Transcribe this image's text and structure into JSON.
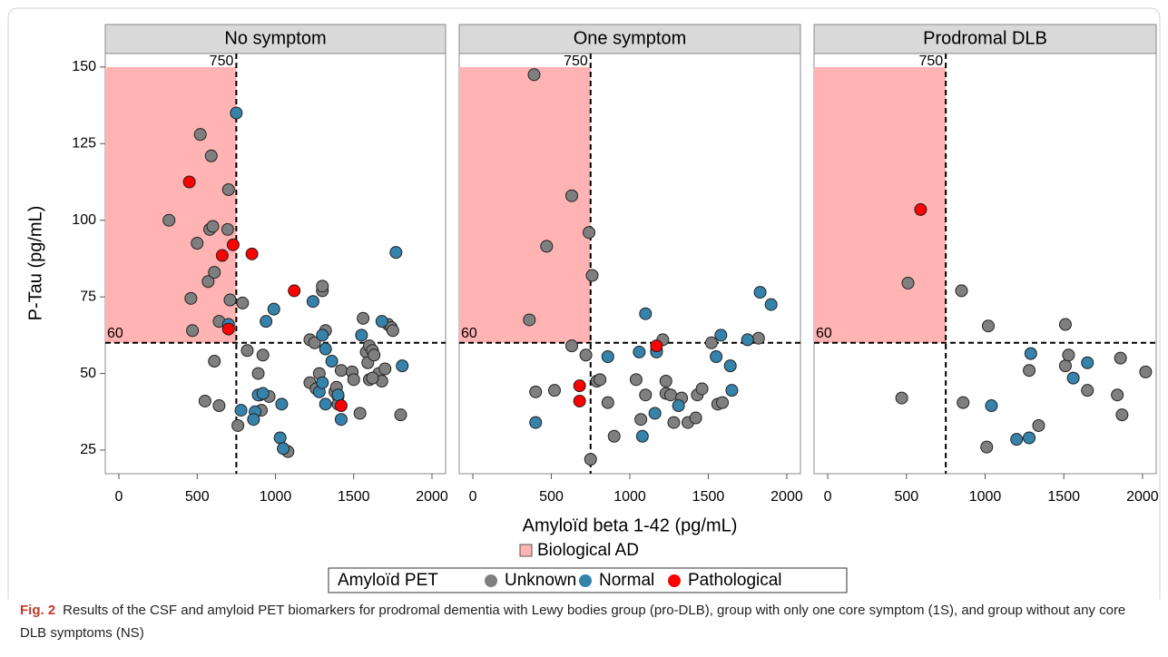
{
  "chart_data": [
    {
      "type": "scatter",
      "title": "No symptom",
      "xlim": [
        -87,
        2087
      ],
      "xticks": [
        0,
        500,
        1000,
        1500,
        2000
      ],
      "ylim": [
        17.3,
        154.4
      ],
      "yticks": [
        25,
        50,
        75,
        100,
        125,
        150
      ],
      "vline": 750,
      "hline": 60,
      "shade_top": 150,
      "series": [
        {
          "name": "Unknown",
          "color": "#7f7f7f",
          "x": [
            320,
            520,
            590,
            700,
            500,
            580,
            600,
            695,
            460,
            470,
            570,
            610,
            640,
            710,
            790,
            820,
            890,
            920,
            960,
            900,
            610,
            550,
            640,
            760,
            910,
            1080,
            1220,
            1250,
            1220,
            1260,
            1280,
            1300,
            1300,
            1320,
            1380,
            1400,
            1390,
            1420,
            1490,
            1500,
            1540,
            1560,
            1580,
            1600,
            1590,
            1620,
            1630,
            1600,
            1660,
            1680,
            1700,
            1720,
            1740,
            1750,
            1800,
            1400,
            1620
          ],
          "y": [
            100,
            128,
            121,
            110,
            92.5,
            97,
            98,
            97,
            74.5,
            64,
            80,
            83,
            67,
            74,
            73,
            57.5,
            50,
            56,
            42.5,
            43,
            54,
            41,
            39.5,
            33,
            38,
            24.5,
            61,
            60,
            47,
            45,
            50,
            77,
            78.5,
            64,
            44,
            42.5,
            45.5,
            51,
            50.5,
            48,
            37,
            68,
            57,
            59,
            53.5,
            57.5,
            56,
            48,
            50,
            47.5,
            51.5,
            66,
            65,
            64,
            36.5,
            40,
            48.5
          ]
        },
        {
          "name": "Normal",
          "color": "#3582ab",
          "x": [
            750,
            1770,
            700,
            990,
            940,
            1240,
            1300,
            1320,
            1360,
            1280,
            1300,
            1320,
            1420,
            1400,
            1550,
            1680,
            1810,
            1040,
            1030,
            1050,
            890,
            870,
            860,
            780,
            920
          ],
          "y": [
            135,
            89.5,
            66,
            71,
            67,
            73.5,
            62.5,
            58,
            54,
            44,
            47,
            40,
            35,
            43,
            62.5,
            67,
            52.5,
            40,
            29,
            25.5,
            43,
            37.5,
            35,
            38,
            43.5
          ]
        },
        {
          "name": "Pathological",
          "color": "#ff0000",
          "x": [
            450,
            730,
            850,
            660,
            700,
            1120,
            1420
          ],
          "y": [
            112.5,
            92,
            89,
            88.5,
            64.5,
            77,
            39.5
          ]
        }
      ]
    },
    {
      "type": "scatter",
      "title": "One symptom",
      "xlim": [
        -87,
        2087
      ],
      "xticks": [
        0,
        500,
        1000,
        1500,
        2000
      ],
      "ylim": [
        17.3,
        154.4
      ],
      "vline": 750,
      "hline": 60,
      "shade_top": 150,
      "series": [
        {
          "name": "Unknown",
          "color": "#7f7f7f",
          "x": [
            390,
            630,
            470,
            740,
            760,
            360,
            630,
            720,
            790,
            810,
            400,
            520,
            750,
            860,
            900,
            1040,
            1070,
            1100,
            1170,
            1210,
            1230,
            1230,
            1260,
            1280,
            1330,
            1370,
            1420,
            1430,
            1460,
            1520,
            1560,
            1590,
            1820
          ],
          "y": [
            147.5,
            108,
            91.5,
            96,
            82,
            67.5,
            59,
            56,
            47.5,
            48,
            44,
            44.5,
            22,
            40.5,
            29.5,
            48,
            35,
            43,
            57.5,
            61,
            47.5,
            43.5,
            43,
            34,
            42,
            34,
            35.5,
            43,
            45,
            60,
            40,
            40.5,
            61.5
          ]
        },
        {
          "name": "Normal",
          "color": "#3582ab",
          "x": [
            400,
            860,
            1060,
            1100,
            1170,
            1160,
            1080,
            1310,
            1550,
            1580,
            1640,
            1650,
            1750,
            1830,
            1900
          ],
          "y": [
            34,
            55.5,
            57,
            69.5,
            57,
            37,
            29.5,
            39.5,
            55.5,
            62.5,
            52.5,
            44.5,
            61,
            76.5,
            72.5
          ]
        },
        {
          "name": "Pathological",
          "color": "#ff0000",
          "x": [
            680,
            680,
            1170
          ],
          "y": [
            46,
            41,
            59
          ]
        }
      ]
    },
    {
      "type": "scatter",
      "title": "Prodromal DLB",
      "xlim": [
        -87,
        2087
      ],
      "xticks": [
        0,
        500,
        1000,
        1500,
        2000
      ],
      "ylim": [
        17.3,
        154.4
      ],
      "vline": 750,
      "hline": 60,
      "shade_top": 150,
      "series": [
        {
          "name": "Unknown",
          "color": "#7f7f7f",
          "x": [
            510,
            470,
            850,
            860,
            1020,
            1010,
            1340,
            1280,
            1510,
            1510,
            1530,
            1650,
            1840,
            1860,
            1870,
            2020
          ],
          "y": [
            79.5,
            42,
            77,
            40.5,
            65.5,
            26,
            33,
            51,
            66,
            52.5,
            56,
            44.5,
            43,
            55,
            36.5,
            50.5
          ]
        },
        {
          "name": "Normal",
          "color": "#3582ab",
          "x": [
            1040,
            1200,
            1280,
            1290,
            1560,
            1650
          ],
          "y": [
            39.5,
            28.5,
            29,
            56.5,
            48.5,
            53.5
          ]
        },
        {
          "name": "Pathological",
          "color": "#ff0000",
          "x": [
            590
          ],
          "y": [
            103.5
          ]
        }
      ]
    }
  ],
  "figure": {
    "xlabel": "Amyloïd beta 1-42 (pg/mL)",
    "ylabel": "P-Tau (pg/mL)",
    "shade_legend": "Biological AD",
    "shade_color": "#ffb3b3",
    "legend_title": "Amyloïd PET"
  },
  "caption": {
    "label": "Fig. 2",
    "text": "Results of the CSF and amyloid PET biomarkers for prodromal dementia with Lewy bodies group (pro-DLB), group with only one core symptom (1S), and group without any core DLB symptoms (NS)"
  }
}
